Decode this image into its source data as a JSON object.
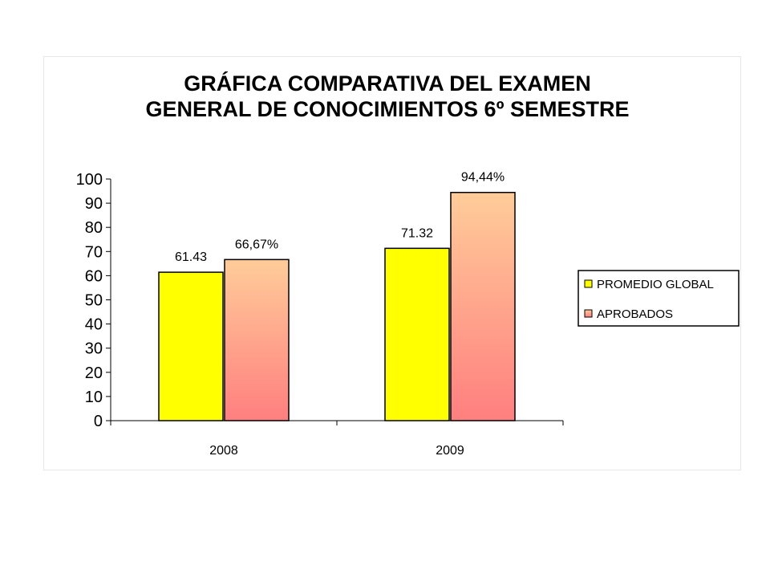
{
  "chart_data": {
    "type": "bar",
    "title": [
      "GRÁFICA COMPARATIVA DEL EXAMEN",
      "GENERAL DE CONOCIMIENTOS 6º SEMESTRE"
    ],
    "categories": [
      "2008",
      "2009"
    ],
    "ylim": [
      0,
      100
    ],
    "yticks": [
      "0",
      "10",
      "20",
      "30",
      "40",
      "50",
      "60",
      "70",
      "80",
      "90",
      "100"
    ],
    "grid": false,
    "legend_position": "right",
    "series": [
      {
        "name": "PROMEDIO GLOBAL",
        "values": [
          61.43,
          71.32
        ],
        "labels": [
          "61.43",
          "71.32"
        ],
        "color": "#ffff00"
      },
      {
        "name": "APROBADOS",
        "values": [
          66.67,
          94.44
        ],
        "labels": [
          "66,67%",
          "94,44%"
        ],
        "color_top": "#ffcc99",
        "color_bottom": "#ff7f7f"
      }
    ]
  }
}
